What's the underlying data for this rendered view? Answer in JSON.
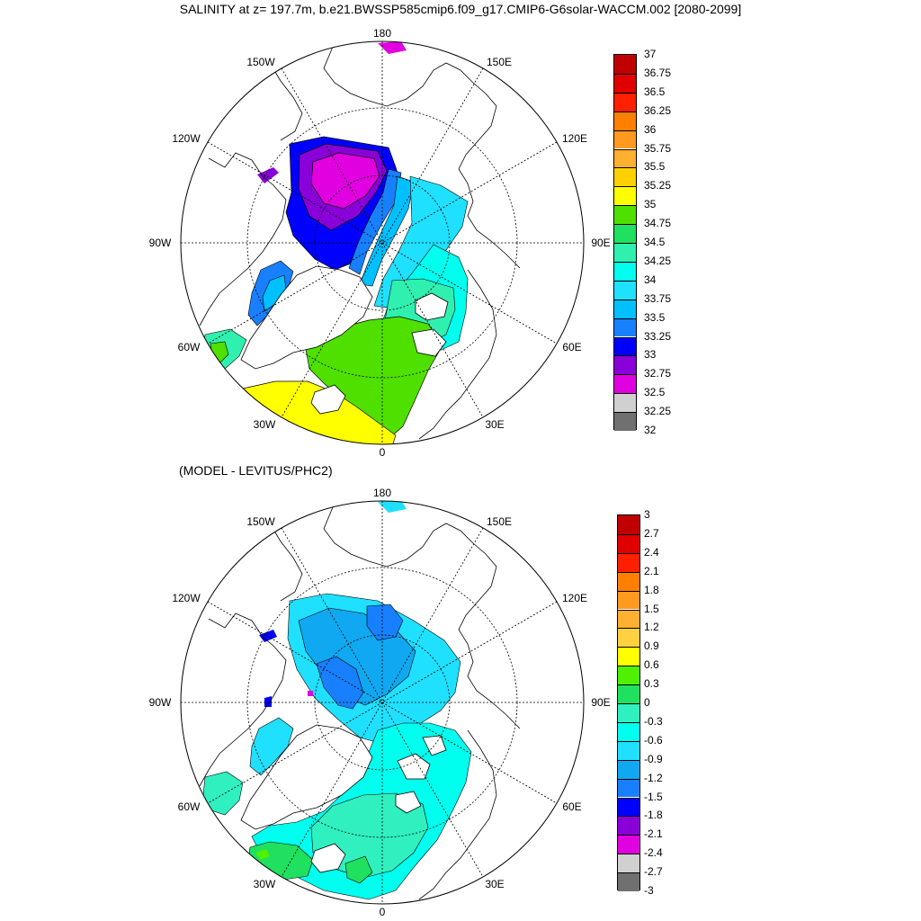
{
  "title": "SALINITY at z= 197.7m, b.e21.BWSSP585cmip6.f09_g17.CMIP6-G6solar-WACCM.002 [2080-2099]",
  "subtitle": "(MODEL - LEVITUS/PHC2)",
  "map_labels": {
    "lon_180": "180",
    "lon_150w": "150W",
    "lon_150e": "150E",
    "lon_120w": "120W",
    "lon_120e": "120E",
    "lon_90w": "90W",
    "lon_90e": "90E",
    "lon_60w": "60W",
    "lon_60e": "60E",
    "lon_30w": "30W",
    "lon_30e": "30E",
    "lon_0": "0"
  },
  "top_colorbar": {
    "labels": [
      "37",
      "36.75",
      "36.5",
      "36.25",
      "36",
      "35.75",
      "35.5",
      "35.25",
      "35",
      "34.75",
      "34.5",
      "34.25",
      "34",
      "33.75",
      "33.5",
      "33.25",
      "33",
      "32.75",
      "32.5",
      "32.25",
      "32"
    ],
    "colors": [
      "#c00000",
      "#e00000",
      "#ff2000",
      "#ff8000",
      "#ff9a20",
      "#ffb030",
      "#ffd000",
      "#ffff00",
      "#50e000",
      "#20e060",
      "#30f0b0",
      "#00ffee",
      "#20e0ff",
      "#00c0ff",
      "#1880ff",
      "#0000ff",
      "#8a00d8",
      "#e000e0",
      "#d0d0d0",
      "#707070"
    ]
  },
  "bottom_colorbar": {
    "labels": [
      "3",
      "2.7",
      "2.4",
      "2.1",
      "1.8",
      "1.5",
      "1.2",
      "0.9",
      "0.6",
      "0.3",
      "0",
      "-0.3",
      "-0.6",
      "-0.9",
      "-1.2",
      "-1.5",
      "-1.8",
      "-2.1",
      "-2.4",
      "-2.7",
      "-3"
    ],
    "colors": [
      "#c00000",
      "#e00000",
      "#ff2000",
      "#ff8000",
      "#ff9a20",
      "#ffb030",
      "#ffd040",
      "#ffff00",
      "#50f000",
      "#20e060",
      "#30f0c0",
      "#00ffee",
      "#20e0ff",
      "#10a8f0",
      "#1880ff",
      "#0000ff",
      "#8a00d8",
      "#e000e0",
      "#d0d0d0",
      "#707070"
    ]
  }
}
